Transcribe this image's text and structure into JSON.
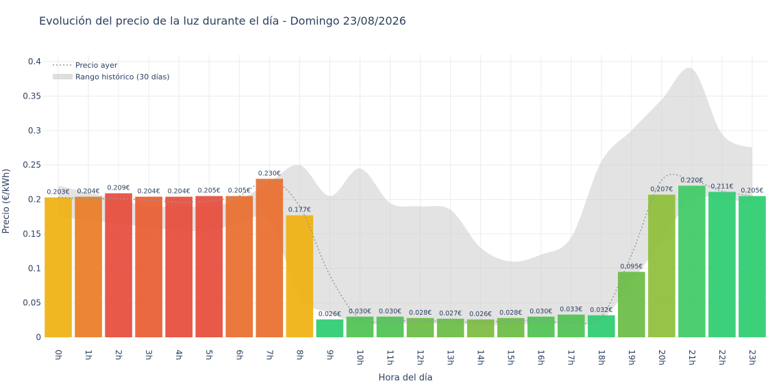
{
  "chart_data": {
    "type": "bar",
    "title": "Evolución del precio de la luz durante el día - Domingo 23/08/2026",
    "xlabel": "Hora del día",
    "ylabel": "Precio (€/kWh)",
    "ylim": [
      0,
      0.41
    ],
    "yticks": [
      0,
      0.05,
      0.1,
      0.15,
      0.2,
      0.25,
      0.3,
      0.35,
      0.4
    ],
    "ytick_labels": [
      "0",
      "0.05",
      "0.1",
      "0.15",
      "0.2",
      "0.25",
      "0.3",
      "0.35",
      "0.4"
    ],
    "grid": true,
    "legend_position": "top-left",
    "categories": [
      "0h",
      "1h",
      "2h",
      "3h",
      "4h",
      "5h",
      "6h",
      "7h",
      "8h",
      "9h",
      "10h",
      "11h",
      "12h",
      "13h",
      "14h",
      "15h",
      "16h",
      "17h",
      "18h",
      "19h",
      "20h",
      "21h",
      "22h",
      "23h"
    ],
    "values": [
      0.203,
      0.204,
      0.209,
      0.204,
      0.204,
      0.205,
      0.205,
      0.23,
      0.177,
      0.026,
      0.03,
      0.03,
      0.028,
      0.027,
      0.026,
      0.028,
      0.03,
      0.033,
      0.032,
      0.095,
      0.207,
      0.22,
      0.211,
      0.205
    ],
    "labels": [
      "0.203€",
      "0.204€",
      "0.209€",
      "0.204€",
      "0.204€",
      "0.205€",
      "0.205€",
      "0.230€",
      "0.177€",
      "0.026€",
      "0.030€",
      "0.030€",
      "0.028€",
      "0.027€",
      "0.026€",
      "0.028€",
      "0.030€",
      "0.033€",
      "0.032€",
      "0.095€",
      "0.207€",
      "0.220€",
      "0.211€",
      "0.205€"
    ],
    "bar_colors": [
      "#f0b212",
      "#ea7d25",
      "#e74c3c",
      "#ea5e2f",
      "#e74c3c",
      "#e74c3c",
      "#ea6e2d",
      "#ea6e2d",
      "#f0b212",
      "#2ecc71",
      "#50c352",
      "#50c352",
      "#6abd45",
      "#6abd45",
      "#7dbb3f",
      "#6abd45",
      "#50c352",
      "#50c352",
      "#2ecc71",
      "#6abd45",
      "#8fbf3a",
      "#3fcb66",
      "#2ecc71",
      "#2ecc71"
    ],
    "series": [
      {
        "name": "Precio ayer",
        "style": "dotted-line",
        "color": "#8a9aa0",
        "values": [
          0.203,
          0.201,
          0.201,
          0.199,
          0.196,
          0.198,
          0.205,
          0.229,
          0.19,
          0.09,
          0.027,
          0.025,
          0.024,
          0.023,
          0.022,
          0.024,
          0.024,
          0.021,
          0.03,
          0.12,
          0.228,
          0.228,
          0.212,
          0.205
        ]
      },
      {
        "name": "Rango histórico (30 días)",
        "style": "area-band",
        "color": "#cccccc",
        "upper": [
          0.22,
          0.21,
          0.2,
          0.19,
          0.19,
          0.19,
          0.2,
          0.225,
          0.25,
          0.205,
          0.245,
          0.195,
          0.19,
          0.185,
          0.13,
          0.11,
          0.12,
          0.145,
          0.255,
          0.3,
          0.345,
          0.39,
          0.295,
          0.275
        ],
        "lower": [
          0.175,
          0.17,
          0.165,
          0.16,
          0.155,
          0.155,
          0.165,
          0.17,
          0.06,
          0.035,
          0.02,
          0.02,
          0.02,
          0.02,
          0.018,
          0.018,
          0.02,
          0.02,
          0.025,
          0.08,
          0.14,
          0.2,
          0.2,
          0.195
        ]
      }
    ]
  }
}
